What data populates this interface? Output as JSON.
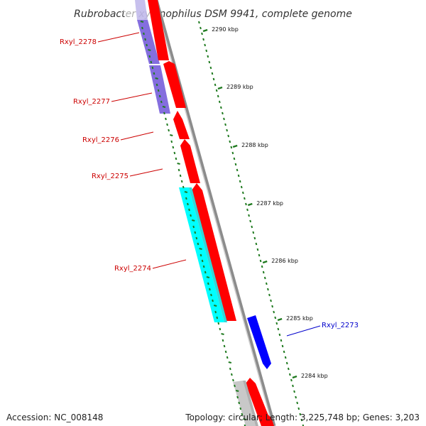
{
  "title": "Rubrobacter xylanophilus DSM 9941, complete genome",
  "colors": {
    "backbone": "#8c8c8c",
    "tick": "#1f7a1f",
    "forward_gene": "#ff0000",
    "reverse_gene": "#6f55d8",
    "cyan_gene": "#00ffff",
    "blue_gene": "#0000ff",
    "grey_gene": "#c8c8c8",
    "red_label": "#cc0000",
    "blue_label": "#0000cc"
  },
  "ticks": [
    {
      "label": "2290 kbp"
    },
    {
      "label": "2289 kbp"
    },
    {
      "label": "2288 kbp"
    },
    {
      "label": "2287 kbp"
    },
    {
      "label": "2286 kbp"
    },
    {
      "label": "2285 kbp"
    },
    {
      "label": "2284 kbp"
    }
  ],
  "genes": [
    {
      "label": "Rxyl_2278",
      "color": "red_label"
    },
    {
      "label": "Rxyl_2277",
      "color": "red_label"
    },
    {
      "label": "Rxyl_2276",
      "color": "red_label"
    },
    {
      "label": "Rxyl_2275",
      "color": "red_label"
    },
    {
      "label": "Rxyl_2274",
      "color": "red_label"
    },
    {
      "label": "Rxyl_2273",
      "color": "blue_label"
    }
  ],
  "footer": {
    "accession": "Accession: NC_008148",
    "stats": "Topology: circular; Length: 3,225,748 bp; Genes: 3,203"
  }
}
